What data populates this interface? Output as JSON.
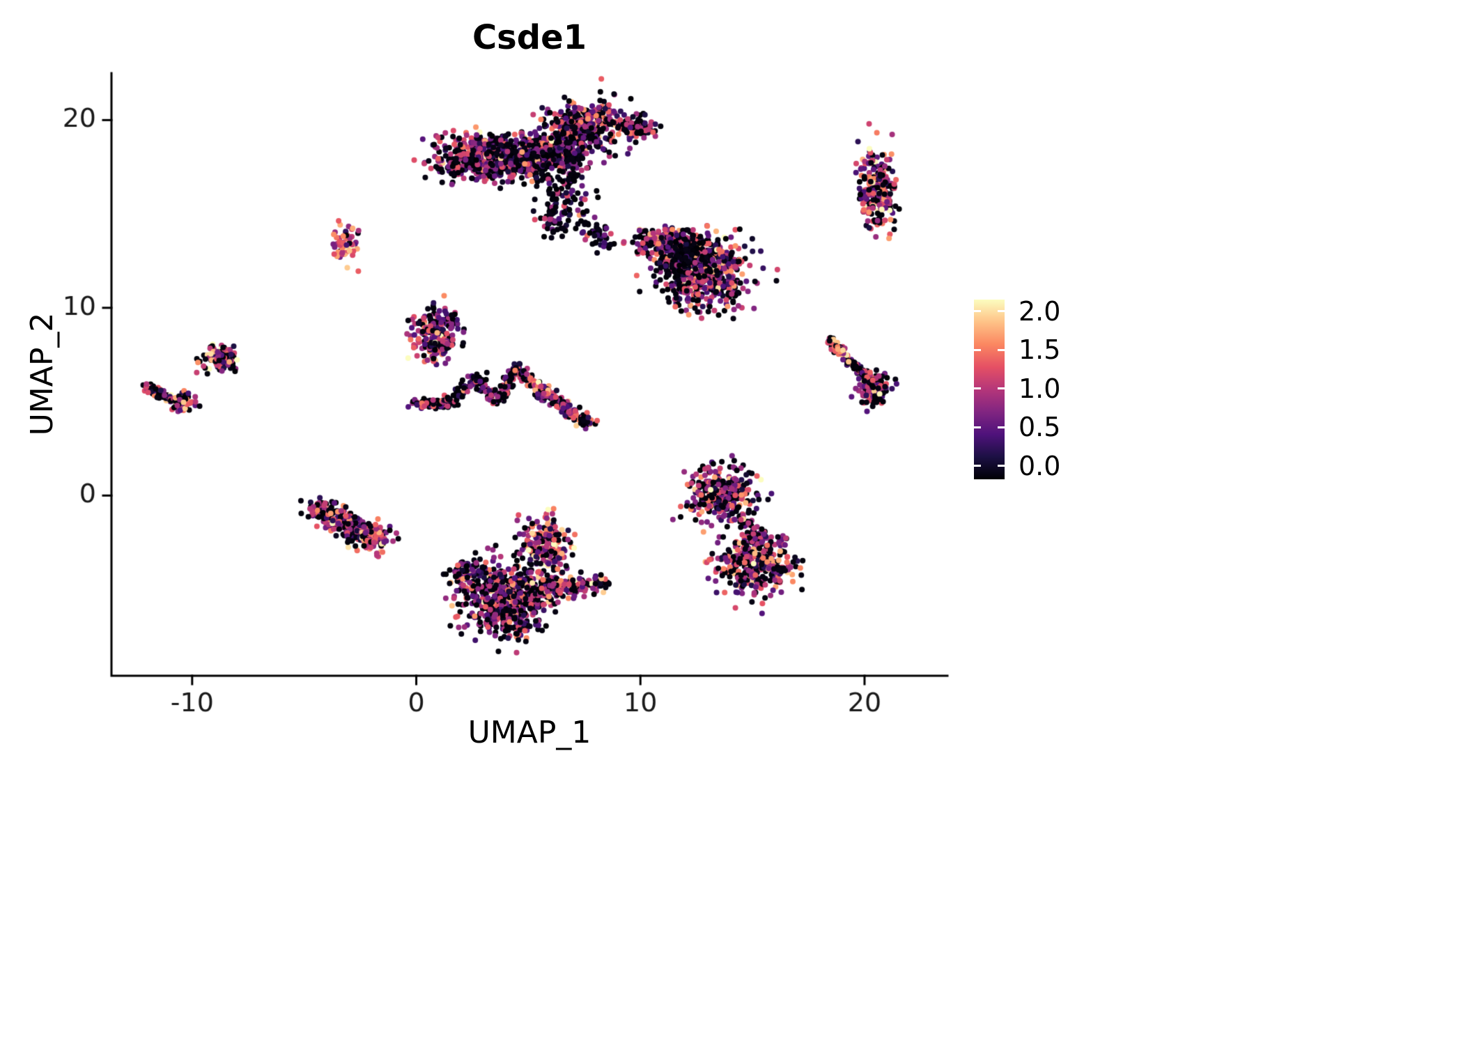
{
  "chart_data": {
    "type": "scatter",
    "title": "Csde1",
    "xlabel": "UMAP_1",
    "ylabel": "UMAP_2",
    "xlim": [
      -13.6,
      23.7
    ],
    "ylim": [
      -9.6,
      22.5
    ],
    "x_ticks": [
      -10,
      0,
      10,
      20
    ],
    "y_ticks": [
      0,
      10,
      20
    ],
    "grid": false,
    "legend_position": "right",
    "point_radius_px": 4,
    "axis_color": "#000000",
    "tick_label_color": "#1a1a1a",
    "background_color": "#ffffff",
    "colorbar": {
      "ticks": [
        2.0,
        1.5,
        1.0,
        0.5,
        0.0
      ],
      "tick_labels": [
        "2.0",
        "1.5",
        "1.0",
        "0.5",
        "0.0"
      ],
      "domain": [
        0,
        2
      ],
      "colors": [
        "#000004",
        "#1c1044",
        "#4f127b",
        "#812581",
        "#b5367a",
        "#e55064",
        "#fb8761",
        "#fec287",
        "#fcfdbf"
      ]
    },
    "clusters": [
      {
        "kind": "blob",
        "cx": 3.4,
        "cy": 18.0,
        "sx": 1.35,
        "sy": 0.6,
        "n": 680,
        "zero": 0.38,
        "mean": 0.85,
        "sd": 0.45
      },
      {
        "kind": "blob",
        "cx": 5.6,
        "cy": 18.2,
        "sx": 0.7,
        "sy": 0.5,
        "n": 200,
        "zero": 0.4,
        "mean": 0.8,
        "sd": 0.45
      },
      {
        "kind": "blob",
        "cx": 7.6,
        "cy": 19.7,
        "sx": 0.85,
        "sy": 0.65,
        "n": 330,
        "zero": 0.35,
        "mean": 0.9,
        "sd": 0.45
      },
      {
        "kind": "blob",
        "cx": 9.9,
        "cy": 19.6,
        "sx": 0.45,
        "sy": 0.3,
        "n": 70,
        "zero": 0.45,
        "mean": 0.7,
        "sd": 0.4
      },
      {
        "kind": "blob",
        "cx": 6.8,
        "cy": 18.5,
        "sx": 0.5,
        "sy": 0.55,
        "n": 130,
        "zero": 0.5,
        "mean": 0.6,
        "sd": 0.4
      },
      {
        "kind": "blob",
        "cx": 6.5,
        "cy": 16.3,
        "sx": 0.7,
        "sy": 0.9,
        "n": 110,
        "zero": 0.6,
        "mean": 0.5,
        "sd": 0.4
      },
      {
        "kind": "line",
        "x1": 6.2,
        "y1": 15.2,
        "x2": 6.0,
        "y2": 13.7,
        "jitter": 0.25,
        "n": 35,
        "zero": 0.6,
        "mean": 0.5,
        "sd": 0.4
      },
      {
        "kind": "line",
        "x1": 7.6,
        "y1": 14.3,
        "x2": 8.6,
        "y2": 13.3,
        "jitter": 0.3,
        "n": 45,
        "zero": 0.55,
        "mean": 0.6,
        "sd": 0.4
      },
      {
        "kind": "blob",
        "cx": 11.2,
        "cy": 13.5,
        "sx": 0.75,
        "sy": 0.4,
        "n": 190,
        "zero": 0.35,
        "mean": 0.95,
        "sd": 0.5
      },
      {
        "kind": "blob",
        "cx": 12.9,
        "cy": 11.9,
        "sx": 0.95,
        "sy": 0.95,
        "n": 560,
        "zero": 0.4,
        "mean": 0.9,
        "sd": 0.5
      },
      {
        "kind": "blob",
        "cx": 11.9,
        "cy": 12.6,
        "sx": 0.55,
        "sy": 0.6,
        "n": 130,
        "zero": 0.65,
        "mean": 0.45,
        "sd": 0.35
      },
      {
        "kind": "blob",
        "cx": -3.1,
        "cy": 13.4,
        "sx": 0.25,
        "sy": 0.5,
        "n": 70,
        "zero": 0.1,
        "mean": 1.35,
        "sd": 0.4
      },
      {
        "kind": "blob",
        "cx": 20.6,
        "cy": 16.4,
        "sx": 0.38,
        "sy": 1.05,
        "n": 260,
        "zero": 0.3,
        "mean": 1.0,
        "sd": 0.5
      },
      {
        "kind": "blob",
        "cx": 0.9,
        "cy": 8.6,
        "sx": 0.5,
        "sy": 0.7,
        "n": 230,
        "zero": 0.35,
        "mean": 0.9,
        "sd": 0.5
      },
      {
        "kind": "line",
        "x1": -0.1,
        "y1": 4.9,
        "x2": 1.5,
        "y2": 4.95,
        "jitter": 0.12,
        "n": 100,
        "zero": 0.4,
        "mean": 0.8,
        "sd": 0.45
      },
      {
        "kind": "line",
        "x1": 1.5,
        "y1": 5.0,
        "x2": 2.7,
        "y2": 6.3,
        "jitter": 0.15,
        "n": 55,
        "zero": 0.5,
        "mean": 0.7,
        "sd": 0.4
      },
      {
        "kind": "line",
        "x1": 2.7,
        "y1": 6.3,
        "x2": 3.6,
        "y2": 4.9,
        "jitter": 0.15,
        "n": 50,
        "zero": 0.45,
        "mean": 0.75,
        "sd": 0.4
      },
      {
        "kind": "line",
        "x1": 3.6,
        "y1": 4.9,
        "x2": 4.5,
        "y2": 6.8,
        "jitter": 0.13,
        "n": 70,
        "zero": 0.4,
        "mean": 0.85,
        "sd": 0.45
      },
      {
        "kind": "line",
        "x1": 4.5,
        "y1": 6.8,
        "x2": 5.3,
        "y2": 5.8,
        "jitter": 0.15,
        "n": 60,
        "zero": 0.4,
        "mean": 0.85,
        "sd": 0.45
      },
      {
        "kind": "line",
        "x1": 5.3,
        "y1": 5.8,
        "x2": 7.6,
        "y2": 3.9,
        "jitter": 0.18,
        "n": 150,
        "zero": 0.35,
        "mean": 0.9,
        "sd": 0.5
      },
      {
        "kind": "blob",
        "cx": -8.8,
        "cy": 7.3,
        "sx": 0.38,
        "sy": 0.38,
        "n": 100,
        "zero": 0.3,
        "mean": 1.0,
        "sd": 0.5
      },
      {
        "kind": "line",
        "x1": -12.1,
        "y1": 5.9,
        "x2": -10.4,
        "y2": 4.8,
        "jitter": 0.12,
        "n": 85,
        "zero": 0.35,
        "mean": 0.9,
        "sd": 0.5
      },
      {
        "kind": "blob",
        "cx": -10.4,
        "cy": 5.0,
        "sx": 0.3,
        "sy": 0.25,
        "n": 45,
        "zero": 0.3,
        "mean": 1.0,
        "sd": 0.5
      },
      {
        "kind": "line",
        "x1": -4.4,
        "y1": -0.7,
        "x2": -2.4,
        "y2": -2.0,
        "jitter": 0.3,
        "n": 240,
        "zero": 0.35,
        "mean": 0.9,
        "sd": 0.5
      },
      {
        "kind": "blob",
        "cx": -2.1,
        "cy": -2.2,
        "sx": 0.5,
        "sy": 0.4,
        "n": 150,
        "zero": 0.25,
        "mean": 1.05,
        "sd": 0.5
      },
      {
        "kind": "blob",
        "cx": 5.8,
        "cy": -2.7,
        "sx": 0.55,
        "sy": 0.75,
        "n": 230,
        "zero": 0.25,
        "mean": 1.1,
        "sd": 0.5
      },
      {
        "kind": "blob",
        "cx": 3.9,
        "cy": -5.4,
        "sx": 1.0,
        "sy": 0.85,
        "n": 560,
        "zero": 0.4,
        "mean": 0.85,
        "sd": 0.5
      },
      {
        "kind": "blob",
        "cx": 2.3,
        "cy": -4.0,
        "sx": 0.35,
        "sy": 0.3,
        "n": 55,
        "zero": 0.4,
        "mean": 0.8,
        "sd": 0.45
      },
      {
        "kind": "line",
        "x1": 5.4,
        "y1": -5.1,
        "x2": 8.2,
        "y2": -4.6,
        "jitter": 0.28,
        "n": 170,
        "zero": 0.3,
        "mean": 1.0,
        "sd": 0.5
      },
      {
        "kind": "blob",
        "cx": 4.3,
        "cy": -6.9,
        "sx": 0.55,
        "sy": 0.45,
        "n": 80,
        "zero": 0.45,
        "mean": 0.7,
        "sd": 0.45
      },
      {
        "kind": "blob",
        "cx": 13.6,
        "cy": 0.1,
        "sx": 0.75,
        "sy": 0.7,
        "n": 300,
        "zero": 0.3,
        "mean": 1.0,
        "sd": 0.5
      },
      {
        "kind": "line",
        "x1": 14.3,
        "y1": -0.9,
        "x2": 15.3,
        "y2": -2.6,
        "jitter": 0.25,
        "n": 70,
        "zero": 0.4,
        "mean": 0.8,
        "sd": 0.45
      },
      {
        "kind": "blob",
        "cx": 15.2,
        "cy": -3.7,
        "sx": 0.9,
        "sy": 0.75,
        "n": 330,
        "zero": 0.35,
        "mean": 0.9,
        "sd": 0.5
      },
      {
        "kind": "line",
        "x1": 18.4,
        "y1": 8.4,
        "x2": 20.2,
        "y2": 6.1,
        "jitter": 0.12,
        "n": 130,
        "zero": 0.3,
        "mean": 1.0,
        "sd": 0.5
      },
      {
        "kind": "blob",
        "cx": 20.4,
        "cy": 5.7,
        "sx": 0.35,
        "sy": 0.45,
        "n": 140,
        "zero": 0.35,
        "mean": 0.9,
        "sd": 0.5
      }
    ]
  }
}
